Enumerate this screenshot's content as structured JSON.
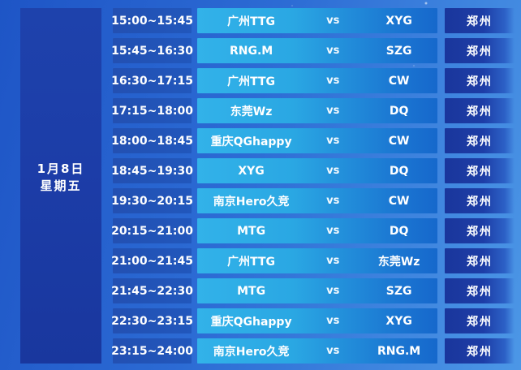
{
  "table": {
    "date_line1": "1月8日",
    "date_line2": "星期五",
    "vs_label": "vs",
    "rows": [
      {
        "time": "15:00~15:45",
        "home": "广州TTG",
        "away": "XYG",
        "venue": "郑州"
      },
      {
        "time": "15:45~16:30",
        "home": "RNG.M",
        "away": "SZG",
        "venue": "郑州"
      },
      {
        "time": "16:30~17:15",
        "home": "广州TTG",
        "away": "CW",
        "venue": "郑州"
      },
      {
        "time": "17:15~18:00",
        "home": "东莞Wz",
        "away": "DQ",
        "venue": "郑州"
      },
      {
        "time": "18:00~18:45",
        "home": "重庆QGhappy",
        "away": "CW",
        "venue": "郑州"
      },
      {
        "time": "18:45~19:30",
        "home": "XYG",
        "away": "DQ",
        "venue": "郑州"
      },
      {
        "time": "19:30~20:15",
        "home": "南京Hero久竞",
        "away": "CW",
        "venue": "郑州"
      },
      {
        "time": "20:15~21:00",
        "home": "MTG",
        "away": "DQ",
        "venue": "郑州"
      },
      {
        "time": "21:00~21:45",
        "home": "广州TTG",
        "away": "东莞Wz",
        "venue": "郑州"
      },
      {
        "time": "21:45~22:30",
        "home": "MTG",
        "away": "SZG",
        "venue": "郑州"
      },
      {
        "time": "22:30~23:15",
        "home": "重庆QGhappy",
        "away": "XYG",
        "venue": "郑州"
      },
      {
        "time": "23:15~24:00",
        "home": "南京Hero久竞",
        "away": "RNG.M",
        "venue": "郑州"
      }
    ]
  },
  "colors": {
    "bg_start": "#1e55c6",
    "bg_mid": "#2c6bd4",
    "bg_end": "#4c97e6",
    "date_cell": "#1c3da8",
    "time_start": "#2350b2",
    "time_end": "#2157bc",
    "match_start": "#32b2e9",
    "match_mid": "#2aa7e3",
    "match_late": "#1b77d2",
    "match_end": "#1668cc",
    "venue_start": "#1a369c",
    "venue_mid": "#1d3da6",
    "venue_end": "#2c60c6",
    "text": "#ffffff"
  }
}
